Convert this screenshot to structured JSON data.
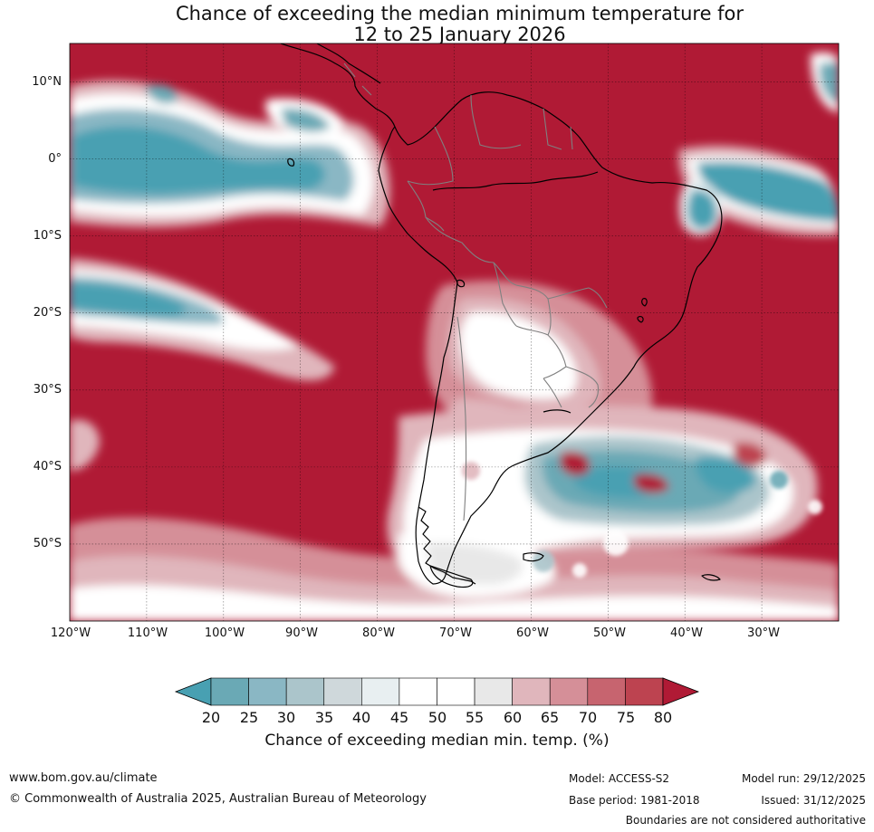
{
  "title": {
    "line1": "Chance of exceeding the median minimum temperature for",
    "line2": "12 to 25 January 2026"
  },
  "map": {
    "region": "South America",
    "lat_labels": [
      "10°N",
      "0°",
      "10°S",
      "20°S",
      "30°S",
      "40°S",
      "50°S"
    ],
    "lon_labels": [
      "120°W",
      "110°W",
      "100°W",
      "90°W",
      "80°W",
      "70°W",
      "60°W",
      "50°W",
      "40°W",
      "30°W"
    ],
    "lat_range": [
      -60,
      15
    ],
    "lon_range": [
      -120,
      -20
    ]
  },
  "legend": {
    "ticks": [
      "20",
      "25",
      "30",
      "35",
      "40",
      "45",
      "50",
      "55",
      "60",
      "65",
      "70",
      "75",
      "80"
    ],
    "colors": [
      "#48a0b2",
      "#6aa9b5",
      "#8ab7c4",
      "#abc5cb",
      "#cfd8db",
      "#e8eff1",
      "#ffffff",
      "#ffffff",
      "#e8e8e8",
      "#e0b6bc",
      "#d58f98",
      "#c7646f",
      "#bd4350",
      "#b01a35"
    ],
    "title": "Chance of exceeding median min. temp. (%)"
  },
  "footer": {
    "website": "www.bom.gov.au/climate",
    "copyright": "© Commonwealth of Australia 2025, Australian Bureau of Meteorology",
    "model": "Model: ACCESS-S2",
    "model_run": "Model run: 29/12/2025",
    "base_period": "Base period: 1981-2018",
    "issued": "Issued: 31/12/2025",
    "disclaimer": "Boundaries are not considered authoritative"
  }
}
